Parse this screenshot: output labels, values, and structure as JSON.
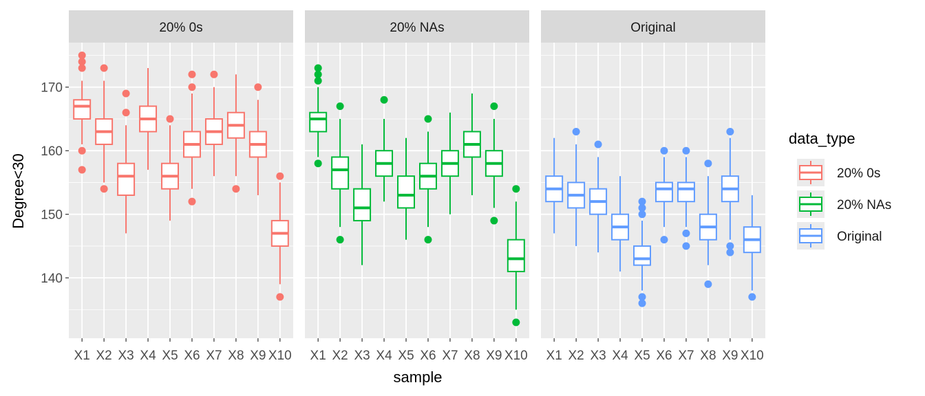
{
  "chart_data": {
    "type": "boxplot",
    "xlabel": "sample",
    "ylabel": "Degree<30",
    "ylim": [
      130.5,
      177
    ],
    "yticks": [
      140,
      150,
      160,
      170
    ],
    "categories": [
      "X1",
      "X2",
      "X3",
      "X4",
      "X5",
      "X6",
      "X7",
      "X8",
      "X9",
      "X10"
    ],
    "legend": {
      "title": "data_type",
      "position": "right",
      "entries": [
        "20% 0s",
        "20% NAs",
        "Original"
      ]
    },
    "grid": true,
    "panels": [
      {
        "label": "20% 0s",
        "color": "#F8766D",
        "boxes": [
          {
            "min": 161,
            "q1": 165,
            "median": 167,
            "q3": 168,
            "max": 171,
            "outliers": [
              175,
              174,
              173,
              160,
              157
            ]
          },
          {
            "min": 155,
            "q1": 161,
            "median": 163,
            "q3": 165,
            "max": 171,
            "outliers": [
              173,
              154
            ]
          },
          {
            "min": 147,
            "q1": 153,
            "median": 156,
            "q3": 158,
            "max": 164,
            "outliers": [
              169,
              166
            ]
          },
          {
            "min": 157,
            "q1": 163,
            "median": 165,
            "q3": 167,
            "max": 173,
            "outliers": []
          },
          {
            "min": 149,
            "q1": 154,
            "median": 156,
            "q3": 158,
            "max": 164,
            "outliers": [
              165
            ]
          },
          {
            "min": 154,
            "q1": 159,
            "median": 161,
            "q3": 163,
            "max": 169,
            "outliers": [
              172,
              170,
              152
            ]
          },
          {
            "min": 156,
            "q1": 161,
            "median": 163,
            "q3": 165,
            "max": 170,
            "outliers": [
              172
            ]
          },
          {
            "min": 156,
            "q1": 162,
            "median": 164,
            "q3": 166,
            "max": 172,
            "outliers": [
              154
            ]
          },
          {
            "min": 153,
            "q1": 159,
            "median": 161,
            "q3": 163,
            "max": 168,
            "outliers": [
              170
            ]
          },
          {
            "min": 139,
            "q1": 145,
            "median": 147,
            "q3": 149,
            "max": 155,
            "outliers": [
              156,
              137
            ]
          }
        ]
      },
      {
        "label": "20% NAs",
        "color": "#00BA38",
        "boxes": [
          {
            "min": 159,
            "q1": 163,
            "median": 165,
            "q3": 166,
            "max": 170,
            "outliers": [
              173,
              172,
              171,
              158
            ]
          },
          {
            "min": 148,
            "q1": 154,
            "median": 157,
            "q3": 159,
            "max": 165,
            "outliers": [
              167,
              146
            ]
          },
          {
            "min": 142,
            "q1": 149,
            "median": 151,
            "q3": 154,
            "max": 161,
            "outliers": []
          },
          {
            "min": 152,
            "q1": 156,
            "median": 158,
            "q3": 160,
            "max": 165,
            "outliers": [
              168
            ]
          },
          {
            "min": 146,
            "q1": 151,
            "median": 153,
            "q3": 156,
            "max": 162,
            "outliers": []
          },
          {
            "min": 148,
            "q1": 154,
            "median": 156,
            "q3": 158,
            "max": 163,
            "outliers": [
              165,
              146
            ]
          },
          {
            "min": 150,
            "q1": 156,
            "median": 158,
            "q3": 160,
            "max": 166,
            "outliers": []
          },
          {
            "min": 153,
            "q1": 159,
            "median": 161,
            "q3": 163,
            "max": 169,
            "outliers": []
          },
          {
            "min": 151,
            "q1": 156,
            "median": 158,
            "q3": 160,
            "max": 165,
            "outliers": [
              167,
              149
            ]
          },
          {
            "min": 135,
            "q1": 141,
            "median": 143,
            "q3": 146,
            "max": 152,
            "outliers": [
              154,
              133
            ]
          }
        ]
      },
      {
        "label": "Original",
        "color": "#619CFF",
        "boxes": [
          {
            "min": 147,
            "q1": 152,
            "median": 154,
            "q3": 156,
            "max": 162,
            "outliers": []
          },
          {
            "min": 145,
            "q1": 151,
            "median": 153,
            "q3": 155,
            "max": 161,
            "outliers": [
              163
            ]
          },
          {
            "min": 144,
            "q1": 150,
            "median": 152,
            "q3": 154,
            "max": 159,
            "outliers": [
              161
            ]
          },
          {
            "min": 141,
            "q1": 146,
            "median": 148,
            "q3": 150,
            "max": 156,
            "outliers": []
          },
          {
            "min": 138,
            "q1": 142,
            "median": 143,
            "q3": 145,
            "max": 149,
            "outliers": [
              152,
              151,
              150,
              137,
              136
            ]
          },
          {
            "min": 148,
            "q1": 152,
            "median": 154,
            "q3": 155,
            "max": 159,
            "outliers": [
              160,
              146
            ]
          },
          {
            "min": 148,
            "q1": 152,
            "median": 154,
            "q3": 155,
            "max": 159,
            "outliers": [
              160,
              147,
              145
            ]
          },
          {
            "min": 142,
            "q1": 146,
            "median": 148,
            "q3": 150,
            "max": 156,
            "outliers": [
              158,
              139
            ]
          },
          {
            "min": 146,
            "q1": 152,
            "median": 154,
            "q3": 156,
            "max": 162,
            "outliers": [
              163,
              145,
              144
            ]
          },
          {
            "min": 138,
            "q1": 144,
            "median": 146,
            "q3": 148,
            "max": 153,
            "outliers": [
              137
            ]
          }
        ]
      }
    ]
  }
}
